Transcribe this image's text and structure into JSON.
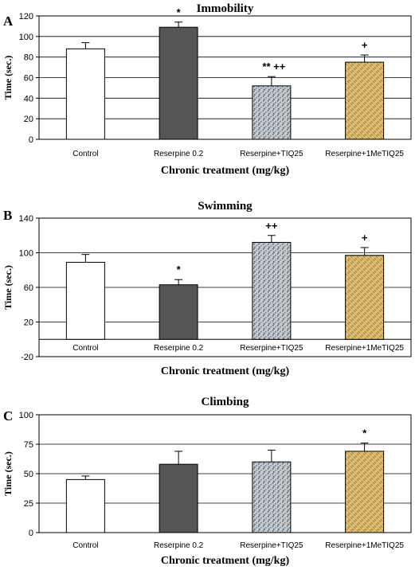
{
  "chart_data": [
    {
      "type": "bar",
      "panel_letter": "A",
      "title": "Immobility",
      "xlabel": "Chronic treatment (mg/kg)",
      "ylabel": "Time (sec.)",
      "ylim": [
        0,
        120
      ],
      "yticks": [
        0,
        20,
        40,
        60,
        80,
        100,
        120
      ],
      "grid": true,
      "categories": [
        "Control",
        "Reserpine 0.2",
        "Reserpine+TIQ25",
        "Reserpine+1MeTIQ25"
      ],
      "values": [
        88,
        109,
        52,
        75
      ],
      "errors": [
        6,
        5,
        9,
        7
      ],
      "annotations": [
        "",
        "*",
        "** ++",
        "+"
      ]
    },
    {
      "type": "bar",
      "panel_letter": "B",
      "title": "Swimming",
      "xlabel": "Chronic treatment (mg/kg)",
      "ylabel": "Time (sec.)",
      "ylim": [
        -20,
        140
      ],
      "yticks": [
        -20,
        20,
        60,
        100,
        140
      ],
      "grid": true,
      "categories": [
        "Control",
        "Reserpine 0.2",
        "Reserpine+TIQ25",
        "Reserpine+1MeTIQ25"
      ],
      "values": [
        89,
        63,
        112,
        97
      ],
      "errors": [
        9,
        6,
        8,
        9
      ],
      "annotations": [
        "",
        "*",
        "++",
        "+"
      ]
    },
    {
      "type": "bar",
      "panel_letter": "C",
      "title": "Climbing",
      "xlabel": "Chronic treatment (mg/kg)",
      "ylabel": "Time (sec.)",
      "ylim": [
        0,
        100
      ],
      "yticks": [
        0,
        25,
        50,
        75,
        100
      ],
      "grid": true,
      "categories": [
        "Control",
        "Reserpine 0.2",
        "Reserpine+TIQ25",
        "Reserpine+1MeTIQ25"
      ],
      "values": [
        45,
        58,
        60,
        69
      ],
      "errors": [
        3,
        11,
        10,
        7
      ],
      "annotations": [
        "",
        "",
        "",
        "*"
      ]
    }
  ],
  "bar_colors": [
    "#ffffff",
    "#555555",
    "#b4bcc2",
    "#d4b062"
  ],
  "bar_fills": [
    "white",
    "dark-gray",
    "speckled-gray",
    "woven-tan"
  ]
}
